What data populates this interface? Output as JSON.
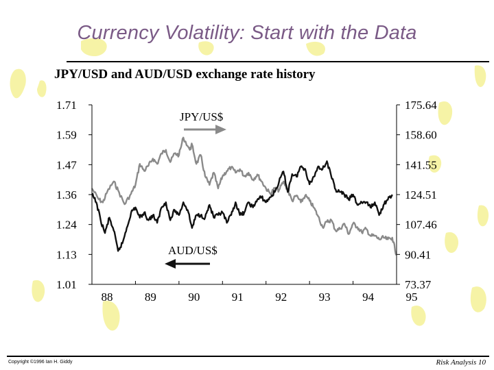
{
  "slide": {
    "title": "Currency Volatility: Start with the Data",
    "copyright": "Copyright ©1996 Ian H. Giddy",
    "page_label": "Risk Analysis 10"
  },
  "colors": {
    "title": "#7a5a86",
    "jpy_line": "#8a8a8a",
    "aud_line": "#111111",
    "decor": "#f6f3a6"
  },
  "chart_data": {
    "type": "line",
    "title": "JPY/USD and AUD/USD exchange rate history",
    "x_ticks": [
      "88",
      "89",
      "90",
      "91",
      "92",
      "93",
      "94",
      "95"
    ],
    "x_range": [
      1988.0,
      1995.0
    ],
    "left_axis": {
      "ticks": [
        "1.71",
        "1.59",
        "1.47",
        "1.36",
        "1.24",
        "1.13",
        "1.01"
      ],
      "range": [
        1.01,
        1.71
      ]
    },
    "right_axis": {
      "ticks": [
        "175.64",
        "158.60",
        "141.55",
        "124.51",
        "107.46",
        "90.41",
        "73.37"
      ],
      "range": [
        73.37,
        175.64
      ]
    },
    "annotations": {
      "jpy_label": "JPY/US$",
      "aud_label": "AUD/US$"
    },
    "series": [
      {
        "name": "JPY/US$",
        "axis": "right",
        "x": [
          1988.0,
          1988.15,
          1988.25,
          1988.35,
          1988.5,
          1988.6,
          1988.75,
          1988.9,
          1989.0,
          1989.1,
          1989.2,
          1989.3,
          1989.4,
          1989.5,
          1989.6,
          1989.7,
          1989.8,
          1989.9,
          1990.0,
          1990.1,
          1990.25,
          1990.3,
          1990.4,
          1990.5,
          1990.6,
          1990.7,
          1990.8,
          1990.9,
          1991.0,
          1991.1,
          1991.2,
          1991.3,
          1991.4,
          1991.5,
          1991.6,
          1991.7,
          1991.8,
          1991.9,
          1992.0,
          1992.1,
          1992.2,
          1992.3,
          1992.4,
          1992.5,
          1992.6,
          1992.7,
          1992.8,
          1992.9,
          1993.0,
          1993.1,
          1993.2,
          1993.3,
          1993.4,
          1993.5,
          1993.6,
          1993.7,
          1993.8,
          1993.9,
          1994.0,
          1994.1,
          1994.2,
          1994.3,
          1994.4,
          1994.5,
          1994.6,
          1994.7,
          1994.8,
          1994.9,
          1995.0
        ],
        "values": [
          128,
          122,
          120,
          126,
          132,
          127,
          119,
          125,
          130,
          142,
          138,
          141,
          145,
          142,
          148,
          150,
          143,
          148,
          147,
          157,
          150,
          153,
          142,
          147,
          135,
          130,
          137,
          128,
          135,
          138,
          140,
          137,
          139,
          135,
          137,
          133,
          136,
          132,
          128,
          125,
          128,
          127,
          132,
          127,
          121,
          124,
          120,
          124,
          121,
          117,
          112,
          106,
          109,
          110,
          104,
          105,
          108,
          102,
          108,
          106,
          103,
          105,
          101,
          101,
          99,
          100,
          99,
          100,
          90
        ]
      },
      {
        "name": "AUD/US$",
        "axis": "left",
        "x": [
          1988.0,
          1988.1,
          1988.2,
          1988.3,
          1988.4,
          1988.5,
          1988.6,
          1988.7,
          1988.8,
          1988.9,
          1989.0,
          1989.1,
          1989.2,
          1989.3,
          1989.4,
          1989.5,
          1989.6,
          1989.7,
          1989.8,
          1989.9,
          1990.0,
          1990.1,
          1990.2,
          1990.3,
          1990.4,
          1990.5,
          1990.6,
          1990.7,
          1990.8,
          1990.9,
          1991.0,
          1991.1,
          1991.2,
          1991.3,
          1991.4,
          1991.5,
          1991.6,
          1991.7,
          1991.8,
          1991.9,
          1992.0,
          1992.1,
          1992.2,
          1992.3,
          1992.4,
          1992.5,
          1992.6,
          1992.7,
          1992.8,
          1992.9,
          1993.0,
          1993.1,
          1993.2,
          1993.3,
          1993.4,
          1993.5,
          1993.6,
          1993.7,
          1993.8,
          1993.9,
          1994.0,
          1994.1,
          1994.2,
          1994.3,
          1994.4,
          1994.5,
          1994.6,
          1994.7,
          1994.8,
          1994.9
        ],
        "values": [
          1.36,
          1.33,
          1.26,
          1.21,
          1.27,
          1.22,
          1.14,
          1.17,
          1.23,
          1.29,
          1.31,
          1.27,
          1.29,
          1.26,
          1.28,
          1.25,
          1.31,
          1.33,
          1.26,
          1.3,
          1.28,
          1.33,
          1.3,
          1.23,
          1.28,
          1.28,
          1.27,
          1.32,
          1.27,
          1.28,
          1.29,
          1.25,
          1.28,
          1.33,
          1.28,
          1.29,
          1.33,
          1.31,
          1.34,
          1.35,
          1.33,
          1.35,
          1.37,
          1.41,
          1.45,
          1.37,
          1.44,
          1.43,
          1.47,
          1.46,
          1.4,
          1.43,
          1.47,
          1.46,
          1.49,
          1.43,
          1.38,
          1.37,
          1.36,
          1.34,
          1.36,
          1.32,
          1.33,
          1.33,
          1.31,
          1.33,
          1.28,
          1.32,
          1.34,
          1.36
        ]
      }
    ]
  }
}
